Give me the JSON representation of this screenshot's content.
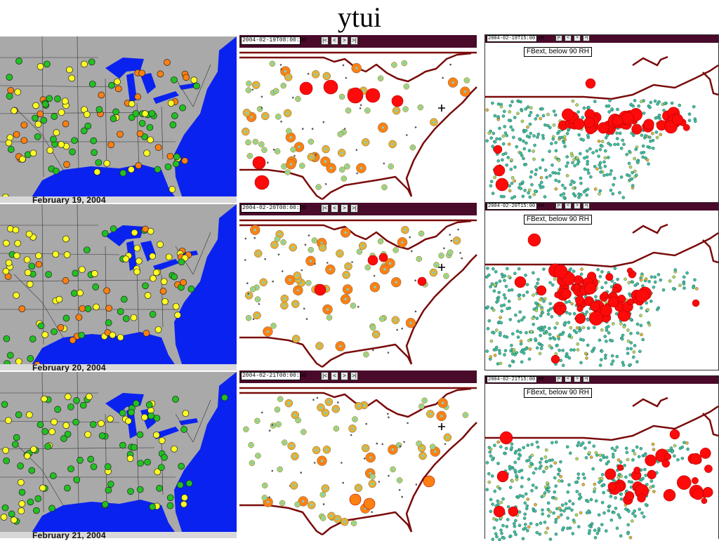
{
  "slide": {
    "title": "ytui"
  },
  "colors": {
    "land_gray": "#a9a9a9",
    "water_blue": "#0a22f0",
    "border_maroon": "#7a0a0a",
    "toolbar": "#4a0a2a",
    "green": "#22c022",
    "yellow": "#ffff22",
    "orange": "#ff8010",
    "red": "#ff0a0a",
    "teal": "#3fbfa0"
  },
  "left_maps": [
    {
      "date_label": "February 19, 2004"
    },
    {
      "date_label": "February 20, 2004"
    },
    {
      "date_label": "February 21, 2004"
    }
  ],
  "middle_maps": [
    {
      "timestamp": "2004-02-19T08:00:00"
    },
    {
      "timestamp": "2004-02-20T08:00:00"
    },
    {
      "timestamp": "2004-02-21T08:00:00"
    }
  ],
  "right_maps": [
    {
      "timestamp": "2004-02-19T15:00:00",
      "layer_label": "FBext, below 90 RH"
    },
    {
      "timestamp": "2004-02-20T15:00:00",
      "layer_label": "FBext, below 90 RH"
    },
    {
      "timestamp": "2004-02-21T15:00:00",
      "layer_label": "FBext, below 90 RH"
    }
  ],
  "nav_buttons": [
    "|<",
    "<",
    ">",
    ">|"
  ]
}
